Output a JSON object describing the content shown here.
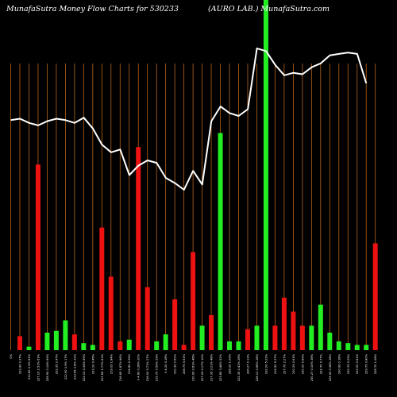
{
  "header": {
    "left": "MunafaSutra  Money Flow  Charts for 530233",
    "right": "(AURO LAB.) MunafaSutra.com"
  },
  "colors": {
    "background": "#000000",
    "gridline": "#b8651b",
    "up": "#22ee22",
    "down": "#ee1111",
    "price_line": "#ffffff"
  },
  "chart_data": {
    "type": "bar",
    "title": "",
    "xlabel": "",
    "ylabel": "",
    "grid": true,
    "bar_ylim": [
      0,
      100
    ],
    "line_ylim": [
      0,
      100
    ],
    "bars": [
      {
        "label": "0%",
        "value": 0,
        "color": "none"
      },
      {
        "label": "223.90 0.37%",
        "value": 4,
        "color": "down"
      },
      {
        "label": "222.80 0.9% 81%",
        "value": 1,
        "color": "up"
      },
      {
        "label": "227.10 2.51% 63%",
        "value": 53,
        "color": "down"
      },
      {
        "label": "226.90 0.14% 69%",
        "value": 5,
        "color": "up"
      },
      {
        "label": "222.35 2.47%",
        "value": 5.5,
        "color": "up"
      },
      {
        "label": "222.90 0.9% 17%",
        "value": 8.5,
        "color": "up"
      },
      {
        "label": "223.65 0.8% 32%",
        "value": 4.5,
        "color": "down"
      },
      {
        "label": "222.10 0.34% 59%",
        "value": 2,
        "color": "up"
      },
      {
        "label": "223.10 0.45%",
        "value": 1.5,
        "color": "up"
      },
      {
        "label": "223.65 1.77% 63%",
        "value": 35,
        "color": "down"
      },
      {
        "label": "219.05 1.84%",
        "value": 21,
        "color": "down"
      },
      {
        "label": "216.65 1.87% 66%",
        "value": 2.5,
        "color": "down"
      },
      {
        "label": "215.60 0.35%",
        "value": 3,
        "color": "up"
      },
      {
        "label": "0 4.60 0.28% 20%",
        "value": 58,
        "color": "down"
      },
      {
        "label": "216.00 0.71% 27%",
        "value": 18,
        "color": "down"
      },
      {
        "label": "215.70 0.59% 25%",
        "value": 2.5,
        "color": "up"
      },
      {
        "label": "0 4.20 0.18%",
        "value": 4.5,
        "color": "up"
      },
      {
        "label": "210.30 0.62%",
        "value": 14.5,
        "color": "down"
      },
      {
        "label": "208.75 0.51%",
        "value": 1.5,
        "color": "down"
      },
      {
        "label": "210.90 0.61% 46%",
        "value": 28,
        "color": "down"
      },
      {
        "label": "207.05 0.17% 10%",
        "value": 7,
        "color": "up"
      },
      {
        "label": "217.35 3.21% 48%",
        "value": 10,
        "color": "down"
      },
      {
        "label": "223.85 3.46% 52%",
        "value": 62,
        "color": "up"
      },
      {
        "label": "226.20 1.09%",
        "value": 2.5,
        "color": "up"
      },
      {
        "label": "222.35 2.41% 26%",
        "value": 2.5,
        "color": "up"
      },
      {
        "label": "226.27 0.13%",
        "value": 6,
        "color": "down"
      },
      {
        "label": "228.12 0.66% 28%",
        "value": 7,
        "color": "up"
      },
      {
        "label": "232.00 5.22%",
        "value": 100,
        "color": "up"
      },
      {
        "label": "219.50 5.37%",
        "value": 7,
        "color": "down"
      },
      {
        "label": "227.70 2.27%",
        "value": 15,
        "color": "down"
      },
      {
        "label": "230.25 0.63%",
        "value": 11,
        "color": "down"
      },
      {
        "label": "230.00 0.69%",
        "value": 7,
        "color": "down"
      },
      {
        "label": "230.27 0.10% 38%",
        "value": 7,
        "color": "up"
      },
      {
        "label": "222.70 0.77%",
        "value": 13,
        "color": "up"
      },
      {
        "label": "229.90 0.38% 28%",
        "value": 5,
        "color": "up"
      },
      {
        "label": "230.90 0.18%",
        "value": 2.5,
        "color": "up"
      },
      {
        "label": "230.75 0.25%",
        "value": 2,
        "color": "up"
      },
      {
        "label": "233.00 0.81%",
        "value": 1.5,
        "color": "up"
      },
      {
        "label": "229.75 0.80%",
        "value": 1.5,
        "color": "up"
      },
      {
        "label": "228.70 1.08%",
        "value": 30.5,
        "color": "down"
      }
    ],
    "price_line": [
      {
        "x": 0,
        "y": 65.7
      },
      {
        "x": 1,
        "y": 66.1
      },
      {
        "x": 2,
        "y": 64.9
      },
      {
        "x": 3,
        "y": 64.2
      },
      {
        "x": 4,
        "y": 65.4
      },
      {
        "x": 5,
        "y": 66.1
      },
      {
        "x": 6,
        "y": 65.7
      },
      {
        "x": 7,
        "y": 64.9
      },
      {
        "x": 8,
        "y": 66.4
      },
      {
        "x": 9,
        "y": 63.3
      },
      {
        "x": 10,
        "y": 58.7
      },
      {
        "x": 11,
        "y": 56.5
      },
      {
        "x": 12,
        "y": 57.3
      },
      {
        "x": 13,
        "y": 50.0
      },
      {
        "x": 14,
        "y": 52.7
      },
      {
        "x": 15,
        "y": 54.2
      },
      {
        "x": 16,
        "y": 53.5
      },
      {
        "x": 17,
        "y": 49.2
      },
      {
        "x": 18,
        "y": 47.7
      },
      {
        "x": 19,
        "y": 45.8
      },
      {
        "x": 20,
        "y": 51.2
      },
      {
        "x": 21,
        "y": 47.3
      },
      {
        "x": 22,
        "y": 65.4
      },
      {
        "x": 23,
        "y": 69.6
      },
      {
        "x": 24,
        "y": 67.7
      },
      {
        "x": 25,
        "y": 66.9
      },
      {
        "x": 26,
        "y": 68.8
      },
      {
        "x": 27,
        "y": 86.2
      },
      {
        "x": 28,
        "y": 85.4
      },
      {
        "x": 29,
        "y": 81.5
      },
      {
        "x": 30,
        "y": 78.5
      },
      {
        "x": 31,
        "y": 79.2
      },
      {
        "x": 32,
        "y": 78.8
      },
      {
        "x": 33,
        "y": 80.8
      },
      {
        "x": 34,
        "y": 81.9
      },
      {
        "x": 35,
        "y": 84.2
      },
      {
        "x": 36,
        "y": 84.6
      },
      {
        "x": 37,
        "y": 85.0
      },
      {
        "x": 38,
        "y": 84.6
      },
      {
        "x": 39,
        "y": 76.2
      }
    ]
  }
}
